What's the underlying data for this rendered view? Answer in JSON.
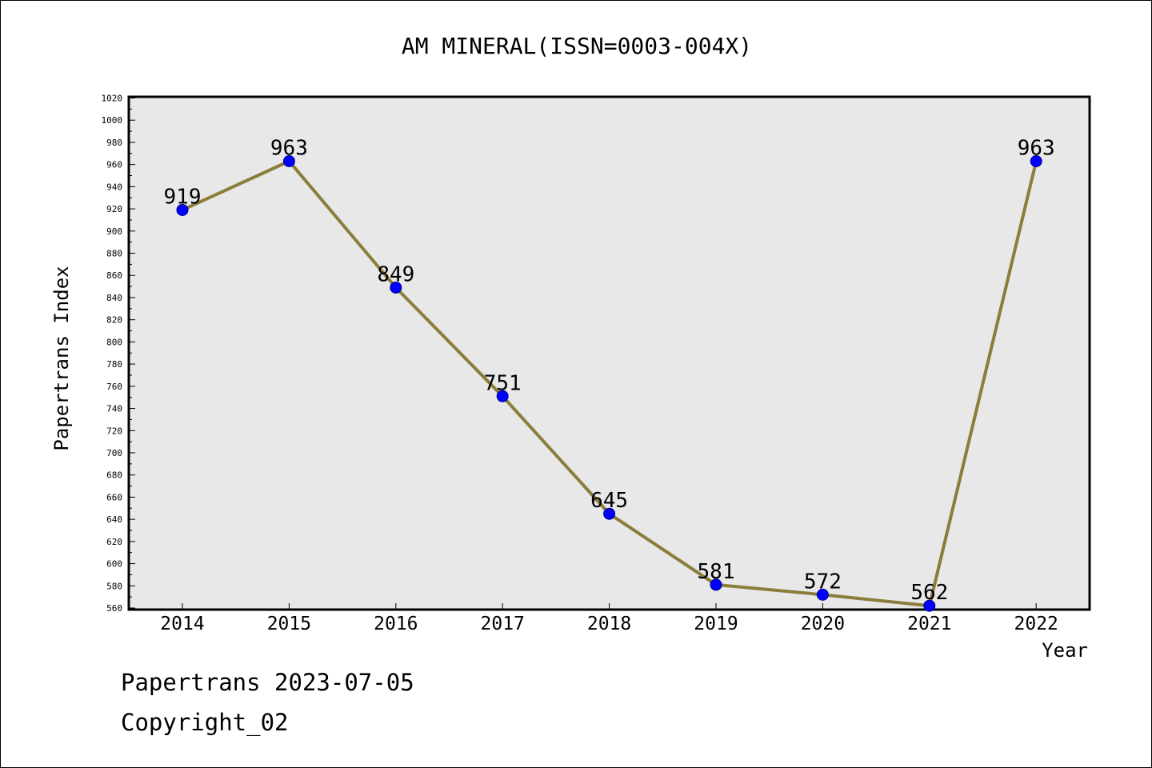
{
  "footer": {
    "line1": "Papertrans 2023-07-05",
    "line2": "Copyright_02"
  },
  "chart_data": {
    "type": "line",
    "title": "AM MINERAL(ISSN=0003-004X)",
    "xlabel": "Year",
    "ylabel": "Papertrans Index",
    "categories": [
      "2014",
      "2015",
      "2016",
      "2017",
      "2018",
      "2019",
      "2020",
      "2021",
      "2022"
    ],
    "series": [
      {
        "values": [
          919,
          963,
          849,
          751,
          645,
          581,
          572,
          562,
          963
        ]
      }
    ],
    "ylim": [
      560,
      1020
    ],
    "ytick_step": 20,
    "ytick_labels": [
      "560",
      "580",
      "600",
      "620",
      "640",
      "660",
      "680",
      "700",
      "720",
      "740",
      "760",
      "780",
      "800",
      "820",
      "840",
      "860",
      "880",
      "900",
      "920",
      "940",
      "960",
      "980",
      "1000",
      "1020"
    ],
    "data_labels": [
      "919",
      "963",
      "849",
      "751",
      "645",
      "581",
      "572",
      "562",
      "963"
    ],
    "grid": false,
    "plot_background": "#e8e8e8",
    "line_color": "#8b7d3a",
    "marker_color": "#0000ff"
  }
}
